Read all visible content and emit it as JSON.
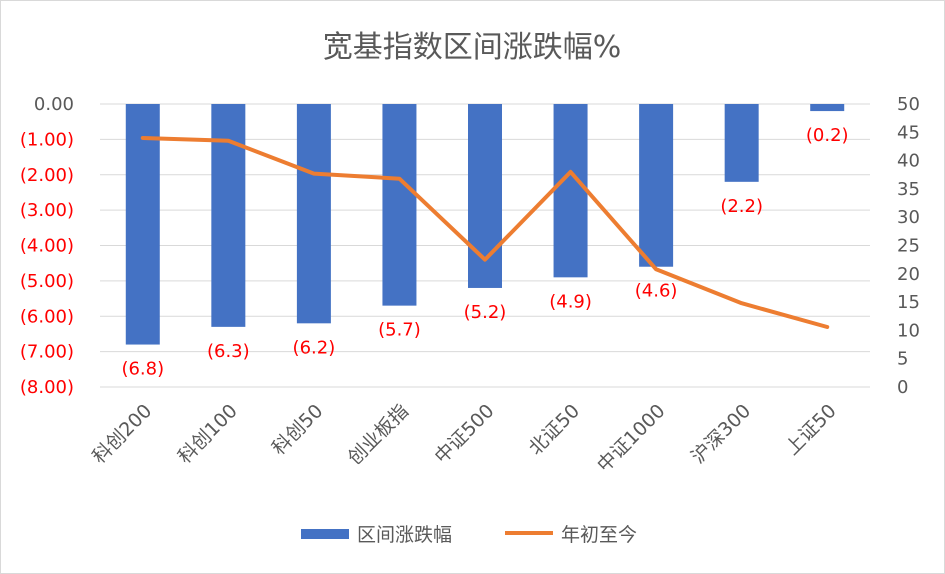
{
  "chart_data": {
    "type": "bar+line",
    "title": "宽基指数区间涨跌幅%",
    "categories": [
      "科创200",
      "科创100",
      "科创50",
      "创业板指",
      "中证500",
      "北证50",
      "中证1000",
      "沪深300",
      "上证50"
    ],
    "series": [
      {
        "name": "区间涨跌幅",
        "type": "bar",
        "axis": "left",
        "color": "#4472c4",
        "values": [
          -6.8,
          -6.3,
          -6.2,
          -5.7,
          -5.2,
          -4.9,
          -4.6,
          -2.2,
          -0.2
        ],
        "data_labels": [
          "(6.8)",
          "(6.3)",
          "(6.2)",
          "(5.7)",
          "(5.2)",
          "(4.9)",
          "(4.6)",
          "(2.2)",
          "(0.2)"
        ]
      },
      {
        "name": "年初至今",
        "type": "line",
        "axis": "right",
        "color": "#ed7d31",
        "values": [
          44,
          43.5,
          37.7,
          36.8,
          22.5,
          38,
          20.8,
          14.8,
          10.6
        ]
      }
    ],
    "left_axis": {
      "ylim": [
        -8,
        0
      ],
      "ticks": [
        0,
        -1,
        -2,
        -3,
        -4,
        -5,
        -6,
        -7,
        -8
      ],
      "tick_labels": [
        "0.00",
        "(1.00)",
        "(2.00)",
        "(3.00)",
        "(4.00)",
        "(5.00)",
        "(6.00)",
        "(7.00)",
        "(8.00)"
      ],
      "negative_color": "#ff0000",
      "zero_color": "#595959"
    },
    "right_axis": {
      "ylim": [
        0,
        50
      ],
      "ticks": [
        0,
        5,
        10,
        15,
        20,
        25,
        30,
        35,
        40,
        45,
        50
      ],
      "tick_labels": [
        "0",
        "5",
        "10",
        "15",
        "20",
        "25",
        "30",
        "35",
        "40",
        "45",
        "50"
      ]
    },
    "grid": true,
    "legend_position": "bottom"
  }
}
